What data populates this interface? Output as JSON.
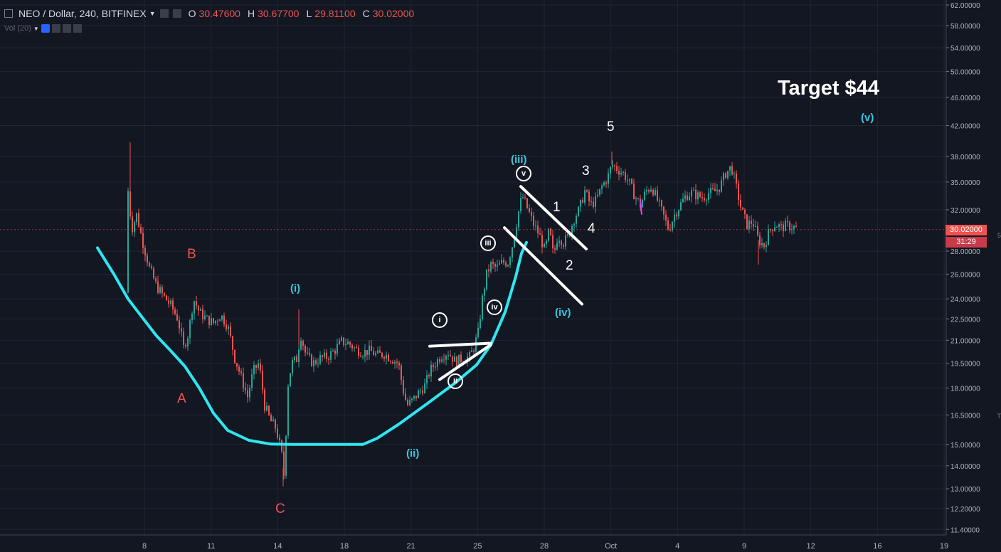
{
  "header": {
    "symbol": "NEO / Dollar, 240, BITFINEX",
    "open_label": "O",
    "open": "30.47600",
    "high_label": "H",
    "high": "30.67700",
    "low_label": "L",
    "low": "29.81100",
    "close_label": "C",
    "close": "30.02000"
  },
  "volume": {
    "label": "Vol (20)"
  },
  "price_tag": {
    "value": "30.02000",
    "timer": "31:29"
  },
  "target": "Target $44",
  "right_edge": {
    "a": "5",
    "b": "T"
  },
  "waves": {
    "A": "A",
    "B": "B",
    "C": "C",
    "i": "(i)",
    "ii": "(ii)",
    "iii": "(iii)",
    "iv": "(iv)",
    "v": "(v)",
    "n1": "1",
    "n2": "2",
    "n3": "3",
    "n4": "4",
    "n5": "5",
    "ci": "i",
    "cii": "ii",
    "ciii": "iii",
    "civ": "iv",
    "cv": "v"
  },
  "colors": {
    "up": "#26a69a",
    "down": "#ef5350",
    "curve": "#2ee6f0",
    "background": "#131722",
    "grid": "#222633"
  },
  "chart_data": {
    "type": "candlestick",
    "y_axis": {
      "scale": "log",
      "ticks": [
        "62.00000",
        "58.00000",
        "54.00000",
        "50.00000",
        "46.00000",
        "42.00000",
        "38.00000",
        "35.00000",
        "32.00000",
        "28.00000",
        "26.00000",
        "24.00000",
        "22.50000",
        "21.00000",
        "19.50000",
        "18.00000",
        "16.50000",
        "15.00000",
        "14.00000",
        "13.00000",
        "12.20000",
        "11.40000"
      ],
      "ylim": [
        11.2,
        63
      ]
    },
    "x_axis": {
      "ticks": [
        "8",
        "11",
        "14",
        "18",
        "21",
        "25",
        "28",
        "Oct",
        "4",
        "9",
        "12",
        "16",
        "19"
      ]
    },
    "last_price": 30.02,
    "price_path": [
      {
        "x": 177,
        "p": 24.5
      },
      {
        "x": 180,
        "p": 34
      },
      {
        "x": 185,
        "p": 30
      },
      {
        "x": 192,
        "p": 31.5
      },
      {
        "x": 200,
        "p": 29
      },
      {
        "x": 210,
        "p": 26.5
      },
      {
        "x": 220,
        "p": 25
      },
      {
        "x": 230,
        "p": 24.2
      },
      {
        "x": 240,
        "p": 23.5
      },
      {
        "x": 250,
        "p": 22.5
      },
      {
        "x": 258,
        "p": 20.5
      },
      {
        "x": 265,
        "p": 21.5
      },
      {
        "x": 272,
        "p": 24
      },
      {
        "x": 280,
        "p": 23
      },
      {
        "x": 290,
        "p": 22.5
      },
      {
        "x": 300,
        "p": 22.2
      },
      {
        "x": 310,
        "p": 22.8
      },
      {
        "x": 320,
        "p": 22
      },
      {
        "x": 330,
        "p": 19.8
      },
      {
        "x": 340,
        "p": 18.5
      },
      {
        "x": 348,
        "p": 17.5
      },
      {
        "x": 356,
        "p": 19
      },
      {
        "x": 364,
        "p": 19.5
      },
      {
        "x": 372,
        "p": 17
      },
      {
        "x": 380,
        "p": 16.2
      },
      {
        "x": 388,
        "p": 15.8
      },
      {
        "x": 396,
        "p": 14.5
      },
      {
        "x": 400,
        "p": 13.3
      },
      {
        "x": 404,
        "p": 18
      },
      {
        "x": 410,
        "p": 19.5
      },
      {
        "x": 418,
        "p": 19.8
      },
      {
        "x": 422,
        "p": 21.5
      },
      {
        "x": 430,
        "p": 20
      },
      {
        "x": 440,
        "p": 19.5
      },
      {
        "x": 450,
        "p": 19.8
      },
      {
        "x": 460,
        "p": 19.9
      },
      {
        "x": 470,
        "p": 20.3
      },
      {
        "x": 480,
        "p": 20.9
      },
      {
        "x": 490,
        "p": 20.8
      },
      {
        "x": 500,
        "p": 20.4
      },
      {
        "x": 510,
        "p": 20.2
      },
      {
        "x": 520,
        "p": 20.3
      },
      {
        "x": 530,
        "p": 20
      },
      {
        "x": 540,
        "p": 20.1
      },
      {
        "x": 550,
        "p": 19.8
      },
      {
        "x": 560,
        "p": 19.5
      },
      {
        "x": 566,
        "p": 18
      },
      {
        "x": 572,
        "p": 17
      },
      {
        "x": 580,
        "p": 17.3
      },
      {
        "x": 590,
        "p": 17.8
      },
      {
        "x": 598,
        "p": 18.2
      },
      {
        "x": 604,
        "p": 19
      },
      {
        "x": 612,
        "p": 19.5
      },
      {
        "x": 620,
        "p": 20
      },
      {
        "x": 630,
        "p": 20.2
      },
      {
        "x": 640,
        "p": 19.6
      },
      {
        "x": 650,
        "p": 19.8
      },
      {
        "x": 660,
        "p": 19.9
      },
      {
        "x": 666,
        "p": 20.5
      },
      {
        "x": 672,
        "p": 21.5
      },
      {
        "x": 678,
        "p": 24
      },
      {
        "x": 684,
        "p": 26
      },
      {
        "x": 690,
        "p": 26.8
      },
      {
        "x": 698,
        "p": 26.5
      },
      {
        "x": 706,
        "p": 27
      },
      {
        "x": 714,
        "p": 27
      },
      {
        "x": 722,
        "p": 29
      },
      {
        "x": 728,
        "p": 31.5
      },
      {
        "x": 734,
        "p": 33.5
      },
      {
        "x": 742,
        "p": 32
      },
      {
        "x": 750,
        "p": 30.5
      },
      {
        "x": 758,
        "p": 29.5
      },
      {
        "x": 766,
        "p": 28
      },
      {
        "x": 772,
        "p": 30
      },
      {
        "x": 778,
        "p": 27.5
      },
      {
        "x": 784,
        "p": 29.5
      },
      {
        "x": 792,
        "p": 28.8
      },
      {
        "x": 800,
        "p": 29.5
      },
      {
        "x": 806,
        "p": 31
      },
      {
        "x": 814,
        "p": 32
      },
      {
        "x": 822,
        "p": 34
      },
      {
        "x": 830,
        "p": 32.5
      },
      {
        "x": 838,
        "p": 33
      },
      {
        "x": 846,
        "p": 34.5
      },
      {
        "x": 854,
        "p": 35.5
      },
      {
        "x": 860,
        "p": 37
      },
      {
        "x": 868,
        "p": 36.5
      },
      {
        "x": 876,
        "p": 36
      },
      {
        "x": 884,
        "p": 35
      },
      {
        "x": 892,
        "p": 33.5
      },
      {
        "x": 900,
        "p": 32.5
      },
      {
        "x": 908,
        "p": 34
      },
      {
        "x": 916,
        "p": 34.5
      },
      {
        "x": 924,
        "p": 33
      },
      {
        "x": 932,
        "p": 31.5
      },
      {
        "x": 940,
        "p": 30
      },
      {
        "x": 948,
        "p": 31.5
      },
      {
        "x": 956,
        "p": 32.5
      },
      {
        "x": 964,
        "p": 33.5
      },
      {
        "x": 972,
        "p": 33.8
      },
      {
        "x": 980,
        "p": 33.5
      },
      {
        "x": 988,
        "p": 33.3
      },
      {
        "x": 996,
        "p": 33.8
      },
      {
        "x": 1004,
        "p": 33.9
      },
      {
        "x": 1012,
        "p": 34.5
      },
      {
        "x": 1020,
        "p": 36
      },
      {
        "x": 1028,
        "p": 36.8
      },
      {
        "x": 1036,
        "p": 34
      },
      {
        "x": 1042,
        "p": 32
      },
      {
        "x": 1050,
        "p": 30.5
      },
      {
        "x": 1058,
        "p": 30.8
      },
      {
        "x": 1066,
        "p": 29
      },
      {
        "x": 1074,
        "p": 28.5
      },
      {
        "x": 1082,
        "p": 30
      },
      {
        "x": 1090,
        "p": 30.6
      },
      {
        "x": 1098,
        "p": 30.2
      },
      {
        "x": 1106,
        "p": 30.4
      },
      {
        "x": 1114,
        "p": 30.3
      },
      {
        "x": 1121,
        "p": 30.02
      }
    ],
    "spikes": [
      {
        "x": 183,
        "p": 39.8
      },
      {
        "x": 420,
        "p": 23.2
      },
      {
        "x": 398,
        "p": 13.1
      },
      {
        "x": 860,
        "p": 38.6
      },
      {
        "x": 1066,
        "p": 26.8
      }
    ],
    "curve_points": [
      {
        "x": 137,
        "p": 28.3
      },
      {
        "x": 160,
        "p": 26
      },
      {
        "x": 180,
        "p": 24
      },
      {
        "x": 200,
        "p": 22.6
      },
      {
        "x": 220,
        "p": 21.3
      },
      {
        "x": 240,
        "p": 20.3
      },
      {
        "x": 260,
        "p": 19.3
      },
      {
        "x": 280,
        "p": 18
      },
      {
        "x": 300,
        "p": 16.6
      },
      {
        "x": 320,
        "p": 15.7
      },
      {
        "x": 350,
        "p": 15.2
      },
      {
        "x": 380,
        "p": 15.02
      },
      {
        "x": 410,
        "p": 15
      },
      {
        "x": 510,
        "p": 15
      },
      {
        "x": 530,
        "p": 15.3
      },
      {
        "x": 560,
        "p": 16
      },
      {
        "x": 600,
        "p": 17.1
      },
      {
        "x": 640,
        "p": 18.3
      },
      {
        "x": 670,
        "p": 19.4
      },
      {
        "x": 690,
        "p": 20.7
      },
      {
        "x": 710,
        "p": 23
      },
      {
        "x": 725,
        "p": 25.8
      },
      {
        "x": 733,
        "p": 27.8
      },
      {
        "x": 740,
        "p": 28.8
      }
    ],
    "trendlines": [
      [
        {
          "x": 604,
          "p": 20.6
        },
        {
          "x": 690,
          "p": 20.8
        }
      ],
      [
        {
          "x": 618,
          "p": 18.5
        },
        {
          "x": 690,
          "p": 20.7
        }
      ],
      [
        {
          "x": 732,
          "p": 34.5
        },
        {
          "x": 824,
          "p": 28.2
        }
      ],
      [
        {
          "x": 709,
          "p": 30.2
        },
        {
          "x": 818,
          "p": 23.6
        }
      ]
    ]
  }
}
